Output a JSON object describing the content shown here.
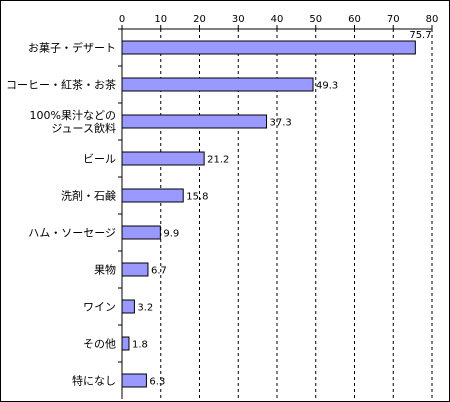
{
  "chart_data": {
    "type": "bar",
    "orientation": "horizontal",
    "categories": [
      [
        "お菓子・デザート"
      ],
      [
        "コーヒー・紅茶・お茶"
      ],
      [
        "100%果汁などの",
        "ジュース飲料"
      ],
      [
        "ビール"
      ],
      [
        "洗剤・石鹸"
      ],
      [
        "ハム・ソーセージ"
      ],
      [
        "果物"
      ],
      [
        "ワイン"
      ],
      [
        "その他"
      ],
      [
        "特になし"
      ]
    ],
    "values": [
      75.7,
      49.3,
      37.3,
      21.2,
      15.8,
      9.9,
      6.7,
      3.2,
      1.8,
      6.3
    ],
    "value_labels": [
      "75.7",
      "49.3",
      "37.3",
      "21.2",
      "15.8",
      "9.9",
      "6.7",
      "3.2",
      "1.8",
      "6.3"
    ],
    "xlim": [
      0,
      80
    ],
    "xticks": [
      "0",
      "10",
      "20",
      "30",
      "40",
      "50",
      "60",
      "70",
      "80"
    ],
    "x_axis_position": "top",
    "grid": "vertical-dashed",
    "legend": "none",
    "colors": {
      "bar_fill": "#9999ff",
      "bar_stroke": "#000000",
      "grid": "#000000"
    }
  }
}
